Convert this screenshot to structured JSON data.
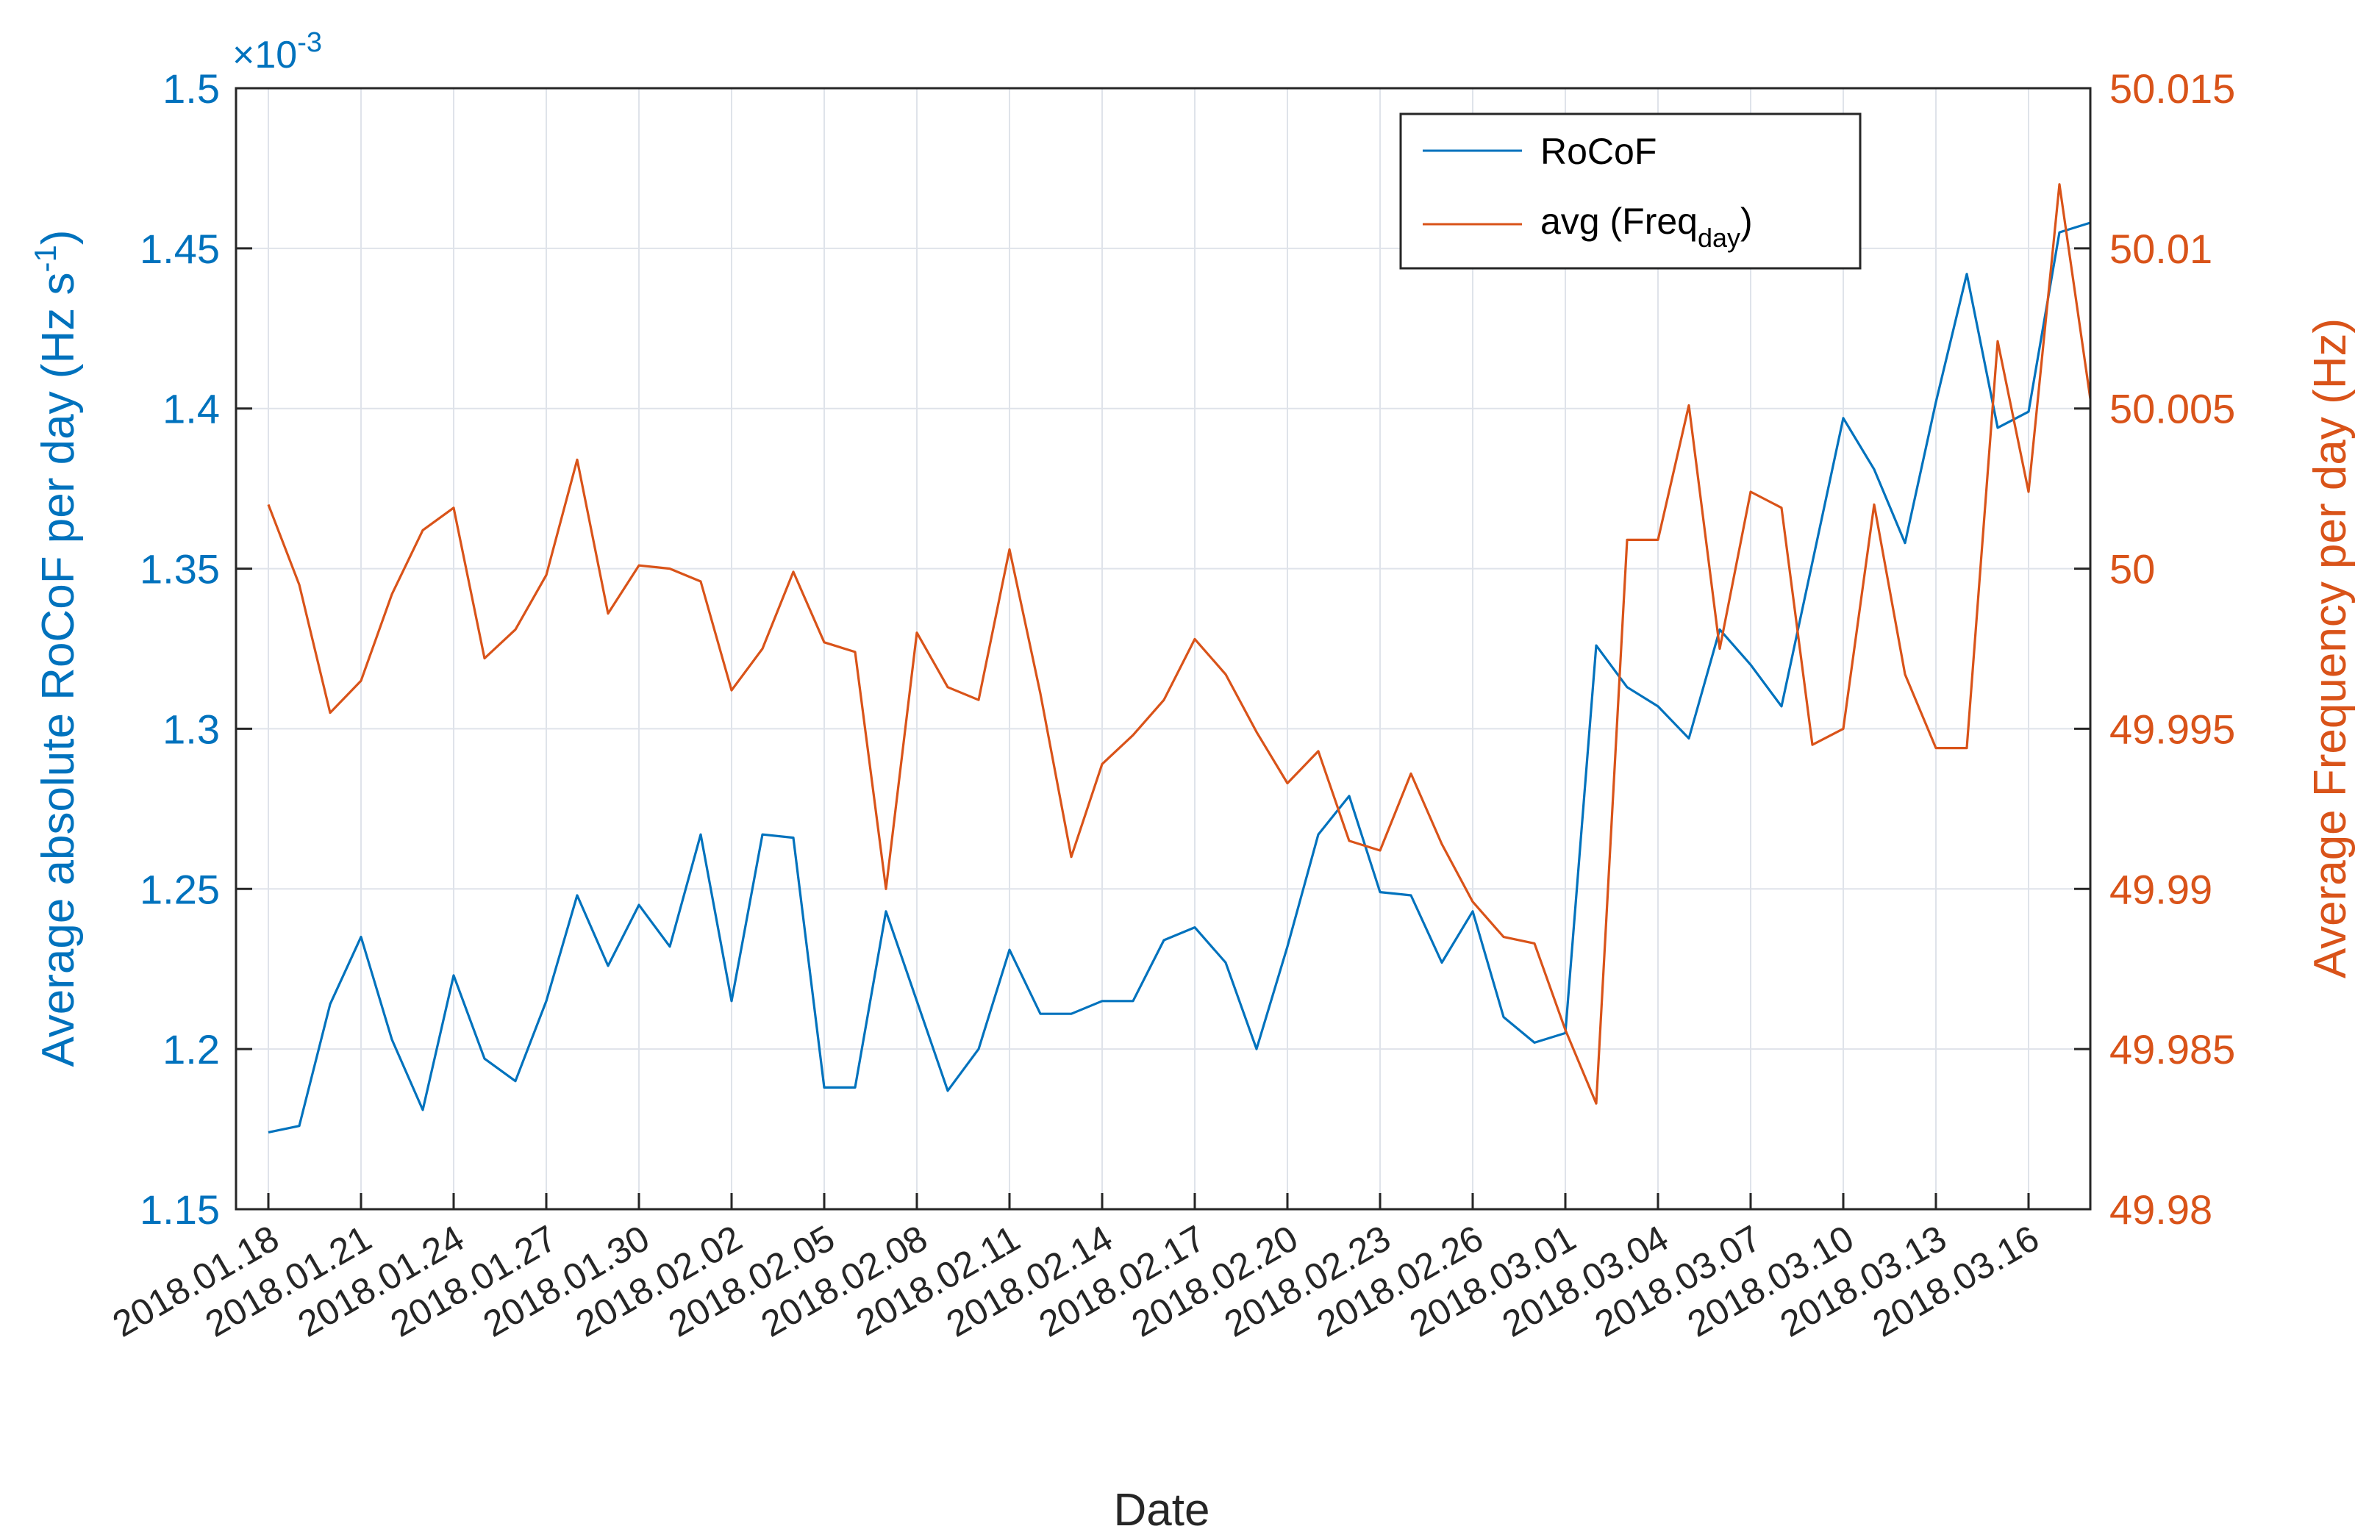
{
  "chart_data": {
    "type": "line",
    "xlabel": "Date",
    "ylabel_left": {
      "main": "Average absolute RoCoF per day (Hz s",
      "sup": "-1",
      "close": ")"
    },
    "ylabel_right": "Average Frequency per day (Hz)",
    "left_axis_exponent": {
      "base": "×10",
      "exp": "-3"
    },
    "x_tick_labels": [
      "2018.01.18",
      "2018.01.21",
      "2018.01.24",
      "2018.01.27",
      "2018.01.30",
      "2018.02.02",
      "2018.02.05",
      "2018.02.08",
      "2018.02.11",
      "2018.02.14",
      "2018.02.17",
      "2018.02.20",
      "2018.02.23",
      "2018.02.26",
      "2018.03.01",
      "2018.03.04",
      "2018.03.07",
      "2018.03.10",
      "2018.03.13",
      "2018.03.16"
    ],
    "x": [
      "2018.01.18",
      "2018.01.19",
      "2018.01.20",
      "2018.01.21",
      "2018.01.22",
      "2018.01.23",
      "2018.01.24",
      "2018.01.25",
      "2018.01.26",
      "2018.01.27",
      "2018.01.28",
      "2018.01.29",
      "2018.01.30",
      "2018.01.31",
      "2018.02.01",
      "2018.02.02",
      "2018.02.03",
      "2018.02.04",
      "2018.02.05",
      "2018.02.06",
      "2018.02.07",
      "2018.02.08",
      "2018.02.09",
      "2018.02.10",
      "2018.02.11",
      "2018.02.12",
      "2018.02.13",
      "2018.02.14",
      "2018.02.15",
      "2018.02.16",
      "2018.02.17",
      "2018.02.18",
      "2018.02.19",
      "2018.02.20",
      "2018.02.21",
      "2018.02.22",
      "2018.02.23",
      "2018.02.24",
      "2018.02.25",
      "2018.02.26",
      "2018.02.27",
      "2018.02.28",
      "2018.03.01",
      "2018.03.02",
      "2018.03.03",
      "2018.03.04",
      "2018.03.05",
      "2018.03.06",
      "2018.03.07",
      "2018.03.08",
      "2018.03.09",
      "2018.03.10",
      "2018.03.11",
      "2018.03.12",
      "2018.03.13",
      "2018.03.14",
      "2018.03.15",
      "2018.03.16",
      "2018.03.17",
      "2018.03.18"
    ],
    "xlim": [
      "2018.01.18",
      "2018.03.18"
    ],
    "left_axis": {
      "ylim": [
        1.15,
        1.5
      ],
      "ticks": [
        "1.15",
        "1.2",
        "1.25",
        "1.3",
        "1.35",
        "1.4",
        "1.45",
        "1.5"
      ]
    },
    "right_axis": {
      "ylim": [
        49.98,
        50.015
      ],
      "ticks": [
        "49.98",
        "49.985",
        "49.99",
        "49.995",
        "50",
        "50.005",
        "50.01",
        "50.015"
      ]
    },
    "grid": true,
    "legend_position": "top-right",
    "series": [
      {
        "name": "RoCoF",
        "axis": "left",
        "color": "#0072BD",
        "values": [
          1.174,
          1.176,
          1.214,
          1.235,
          1.203,
          1.181,
          1.223,
          1.197,
          1.19,
          1.215,
          1.248,
          1.226,
          1.245,
          1.232,
          1.267,
          1.215,
          1.267,
          1.266,
          1.188,
          1.188,
          1.243,
          1.215,
          1.187,
          1.2,
          1.231,
          1.211,
          1.211,
          1.215,
          1.215,
          1.234,
          1.238,
          1.227,
          1.2,
          1.232,
          1.267,
          1.279,
          1.249,
          1.248,
          1.227,
          1.243,
          1.21,
          1.202,
          1.205,
          1.326,
          1.313,
          1.307,
          1.297,
          1.331,
          1.32,
          1.307,
          1.352,
          1.397,
          1.381,
          1.358,
          1.402,
          1.442,
          1.394,
          1.399,
          1.455,
          1.458
        ]
      },
      {
        "name": "avg (Freq",
        "name_sub": "day",
        "name_close": ")",
        "axis": "right",
        "color": "#D95319",
        "values": [
          50.002,
          49.9995,
          49.9955,
          49.9965,
          49.9992,
          50.0012,
          50.0019,
          49.9972,
          49.9981,
          49.9998,
          50.0034,
          49.9986,
          50.0001,
          50.0,
          49.9996,
          49.9962,
          49.9975,
          49.9999,
          49.9977,
          49.9974,
          49.99,
          49.998,
          49.9963,
          49.9959,
          50.0006,
          49.9961,
          49.991,
          49.9939,
          49.9948,
          49.9959,
          49.9978,
          49.9967,
          49.9949,
          49.9933,
          49.9943,
          49.9915,
          49.9912,
          49.9936,
          49.9914,
          49.9896,
          49.9885,
          49.9883,
          49.9856,
          49.9833,
          50.0009,
          50.0009,
          50.0051,
          49.9975,
          50.0024,
          50.0019,
          49.9945,
          49.995,
          50.002,
          49.9967,
          49.9944,
          49.9944,
          50.0071,
          50.0024,
          50.012,
          50.0053
        ]
      }
    ]
  }
}
